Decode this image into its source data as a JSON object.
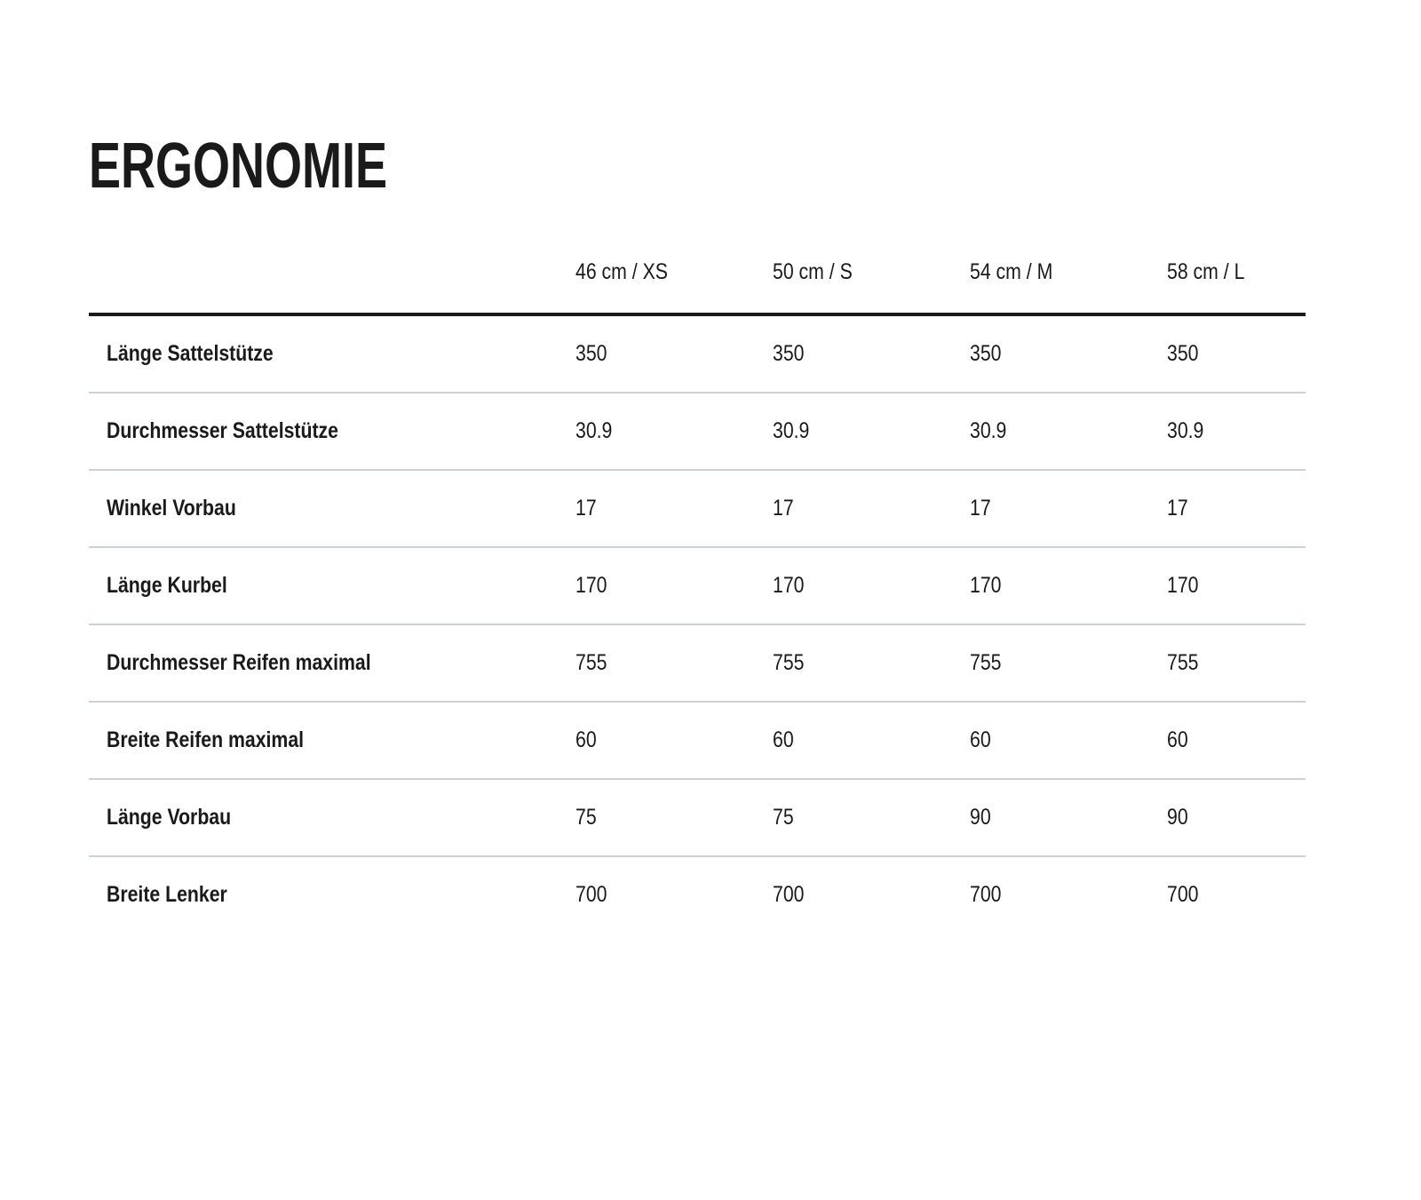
{
  "page": {
    "title": "ERGONOMIE"
  },
  "table": {
    "columns": [
      "46 cm / XS",
      "50 cm / S",
      "54 cm / M",
      "58 cm / L"
    ],
    "rows": [
      {
        "label": "Länge Sattelstütze",
        "values": [
          "350",
          "350",
          "350",
          "350"
        ]
      },
      {
        "label": "Durchmesser Sattelstütze",
        "values": [
          "30.9",
          "30.9",
          "30.9",
          "30.9"
        ]
      },
      {
        "label": "Winkel Vorbau",
        "values": [
          "17",
          "17",
          "17",
          "17"
        ]
      },
      {
        "label": "Länge Kurbel",
        "values": [
          "170",
          "170",
          "170",
          "170"
        ]
      },
      {
        "label": "Durchmesser Reifen maximal",
        "values": [
          "755",
          "755",
          "755",
          "755"
        ]
      },
      {
        "label": "Breite Reifen maximal",
        "values": [
          "60",
          "60",
          "60",
          "60"
        ]
      },
      {
        "label": "Länge Vorbau",
        "values": [
          "75",
          "75",
          "90",
          "90"
        ]
      },
      {
        "label": "Breite Lenker",
        "values": [
          "700",
          "700",
          "700",
          "700"
        ]
      }
    ]
  },
  "colors": {
    "background": "#ffffff",
    "text": "#1a1a1a",
    "header_rule": "#1a1a1a",
    "row_divider": "#ccd1d6"
  }
}
